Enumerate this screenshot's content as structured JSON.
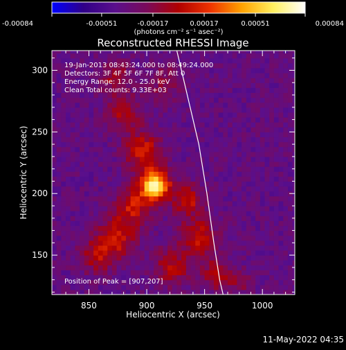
{
  "chart_data": {
    "type": "heatmap",
    "title": "Reconstructed RHESSI Image",
    "xlabel": "Heliocentric X (arcsec)",
    "ylabel": "Heliocentric Y (arcsec)",
    "xlim": [
      818,
      1028
    ],
    "ylim": [
      118,
      316
    ],
    "x_ticks": [
      850,
      900,
      950,
      1000
    ],
    "y_ticks": [
      150,
      200,
      250,
      300
    ],
    "colorbar": {
      "min": -0.00084,
      "max": 0.00084,
      "ticks": [
        "-0.00084",
        "-0.00051",
        "-0.00017",
        "0.00017",
        "0.00051",
        "0.00084"
      ],
      "tick_values": [
        -0.00084,
        -0.00051,
        -0.00017,
        0.00017,
        0.00051,
        0.00084
      ],
      "units": "(photons cm⁻² s⁻¹ asec⁻²)",
      "colormap": [
        "#0000ff",
        "#300088",
        "#5a0f8c",
        "#7a0a5a",
        "#b00000",
        "#ee3300",
        "#ffa200",
        "#fff060",
        "#ffffff"
      ]
    },
    "grid": false,
    "annotations": {
      "time_range": "19-Jan-2013 08:43:24.000 to 08:49:24.000",
      "detectors": "Detectors: 3F 4F 5F 6F 7F 8F, Att 0",
      "energy_range": "Energy Range: 12.0 - 25.0 keV",
      "method": "Clean     Total counts: 9.33E+03",
      "peak": "Position of Peak = [907,207]"
    },
    "peak": {
      "x": 907,
      "y": 207
    },
    "limb_arc": [
      [
        926,
        316
      ],
      [
        935,
        280
      ],
      [
        945,
        240
      ],
      [
        952,
        200
      ],
      [
        958,
        160
      ],
      [
        963,
        130
      ],
      [
        966,
        118
      ]
    ],
    "sources": [
      {
        "x": 907,
        "y": 207,
        "sigma": 9,
        "amp": 1.0
      },
      {
        "x": 897,
        "y": 235,
        "sigma": 11,
        "amp": 0.45
      },
      {
        "x": 888,
        "y": 190,
        "sigma": 10,
        "amp": 0.42
      },
      {
        "x": 935,
        "y": 195,
        "sigma": 9,
        "amp": 0.42
      },
      {
        "x": 945,
        "y": 165,
        "sigma": 11,
        "amp": 0.4
      },
      {
        "x": 875,
        "y": 165,
        "sigma": 12,
        "amp": 0.42
      },
      {
        "x": 857,
        "y": 150,
        "sigma": 10,
        "amp": 0.35
      },
      {
        "x": 922,
        "y": 140,
        "sigma": 11,
        "amp": 0.35
      },
      {
        "x": 880,
        "y": 265,
        "sigma": 10,
        "amp": 0.32
      },
      {
        "x": 872,
        "y": 295,
        "sigma": 10,
        "amp": 0.3
      },
      {
        "x": 960,
        "y": 135,
        "sigma": 9,
        "amp": 0.33
      },
      {
        "x": 915,
        "y": 290,
        "sigma": 11,
        "amp": 0.2
      },
      {
        "x": 980,
        "y": 128,
        "sigma": 8,
        "amp": 0.18
      }
    ]
  },
  "footer": {
    "timestamp": "11-May-2022 04:35"
  }
}
